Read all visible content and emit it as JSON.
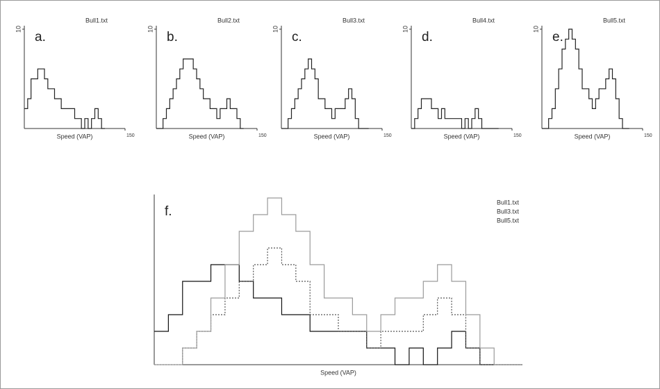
{
  "chart_data": [
    {
      "type": "line",
      "title": "Bull1.txt",
      "annotation": "a.",
      "x_label": "Speed (VAP)",
      "xlim": [
        0,
        150
      ],
      "xticks": [
        150
      ],
      "ylim": [
        0,
        10
      ],
      "yticks": [
        10
      ],
      "color": "#222222",
      "x": [
        0,
        5,
        10,
        15,
        20,
        25,
        30,
        35,
        40,
        45,
        50,
        55,
        60,
        65,
        70,
        75,
        80,
        85,
        90,
        95,
        100,
        105,
        110,
        115,
        120
      ],
      "values": [
        2,
        3,
        5,
        5,
        6,
        6,
        5,
        4,
        4,
        3,
        3,
        2,
        2,
        2,
        2,
        1,
        1,
        0,
        1,
        0,
        1,
        2,
        1,
        0,
        0
      ]
    },
    {
      "type": "line",
      "title": "Bull2.txt",
      "annotation": "b.",
      "x_label": "Speed (VAP)",
      "xlim": [
        0,
        150
      ],
      "xticks": [
        150
      ],
      "ylim": [
        0,
        10
      ],
      "yticks": [
        10
      ],
      "color": "#222222",
      "x": [
        0,
        5,
        10,
        15,
        20,
        25,
        30,
        35,
        40,
        45,
        50,
        55,
        60,
        65,
        70,
        75,
        80,
        85,
        90,
        95,
        100,
        105,
        110,
        115,
        120,
        125,
        130
      ],
      "values": [
        0,
        0,
        1,
        2,
        3,
        4,
        5,
        6,
        7,
        7,
        7,
        6,
        5,
        4,
        3,
        3,
        2,
        2,
        1,
        2,
        2,
        3,
        2,
        2,
        1,
        0,
        0
      ]
    },
    {
      "type": "line",
      "title": "Bull3.txt",
      "annotation": "c.",
      "x_label": "Speed (VAP)",
      "xlim": [
        0,
        150
      ],
      "xticks": [
        150
      ],
      "ylim": [
        0,
        10
      ],
      "yticks": [
        10
      ],
      "color": "#222222",
      "x": [
        0,
        5,
        10,
        15,
        20,
        25,
        30,
        35,
        40,
        45,
        50,
        55,
        60,
        65,
        70,
        75,
        80,
        85,
        90,
        95,
        100,
        105,
        110,
        115,
        120,
        125,
        130
      ],
      "values": [
        0,
        0,
        1,
        2,
        3,
        4,
        5,
        6,
        7,
        6,
        5,
        3,
        3,
        2,
        2,
        1,
        2,
        2,
        2,
        3,
        4,
        3,
        1,
        0,
        0,
        0,
        0
      ]
    },
    {
      "type": "line",
      "title": "Bull4.txt",
      "annotation": "d.",
      "x_label": "Speed (VAP)",
      "xlim": [
        0,
        150
      ],
      "xticks": [
        150
      ],
      "ylim": [
        0,
        10
      ],
      "yticks": [
        10
      ],
      "color": "#222222",
      "x": [
        0,
        5,
        10,
        15,
        20,
        25,
        30,
        35,
        40,
        45,
        50,
        55,
        60,
        65,
        70,
        75,
        80,
        85,
        90,
        95,
        100,
        105,
        110,
        115,
        120,
        125,
        130
      ],
      "values": [
        0,
        1,
        2,
        3,
        3,
        3,
        2,
        2,
        1,
        2,
        1,
        1,
        1,
        1,
        1,
        0,
        1,
        0,
        1,
        2,
        1,
        0,
        0,
        0,
        0,
        0,
        0
      ]
    },
    {
      "type": "line",
      "title": "Bull5.txt",
      "annotation": "e.",
      "x_label": "Speed (VAP)",
      "xlim": [
        0,
        150
      ],
      "xticks": [
        150
      ],
      "ylim": [
        0,
        10
      ],
      "yticks": [
        10
      ],
      "color": "#222222",
      "x": [
        0,
        5,
        10,
        15,
        20,
        25,
        30,
        35,
        40,
        45,
        50,
        55,
        60,
        65,
        70,
        75,
        80,
        85,
        90,
        95,
        100,
        105,
        110,
        115,
        120,
        125,
        130
      ],
      "values": [
        0,
        0,
        1,
        2,
        4,
        6,
        8,
        9,
        10,
        9,
        8,
        6,
        4,
        4,
        3,
        2,
        3,
        4,
        4,
        5,
        6,
        5,
        3,
        1,
        0,
        0,
        0
      ]
    },
    {
      "type": "line",
      "annotation": "f.",
      "x_label": "Speed (VAP)",
      "xlim": [
        0,
        130
      ],
      "ylim": [
        0,
        10
      ],
      "x": [
        0,
        5,
        10,
        15,
        20,
        25,
        30,
        35,
        40,
        45,
        50,
        55,
        60,
        65,
        70,
        75,
        80,
        85,
        90,
        95,
        100,
        105,
        110,
        115,
        120,
        125,
        130
      ],
      "series": [
        {
          "name": "Bull1.txt",
          "color": "#111111",
          "dash": "solid",
          "values": [
            2,
            3,
            5,
            5,
            6,
            6,
            5,
            4,
            4,
            3,
            3,
            2,
            2,
            2,
            2,
            1,
            1,
            0,
            1,
            0,
            1,
            2,
            1,
            0,
            0,
            0,
            0
          ]
        },
        {
          "name": "Bull3.txt",
          "color": "#555555",
          "dash": "dotted",
          "values": [
            0,
            0,
            1,
            2,
            3,
            4,
            5,
            6,
            7,
            6,
            5,
            3,
            3,
            2,
            2,
            1,
            2,
            2,
            2,
            3,
            4,
            3,
            1,
            0,
            0,
            0,
            0
          ]
        },
        {
          "name": "Bull5.txt",
          "color": "#9a9a9a",
          "dash": "solid",
          "values": [
            0,
            0,
            1,
            2,
            4,
            6,
            8,
            9,
            10,
            9,
            8,
            6,
            4,
            4,
            3,
            2,
            3,
            4,
            4,
            5,
            6,
            5,
            3,
            1,
            0,
            0,
            0
          ]
        }
      ]
    }
  ]
}
